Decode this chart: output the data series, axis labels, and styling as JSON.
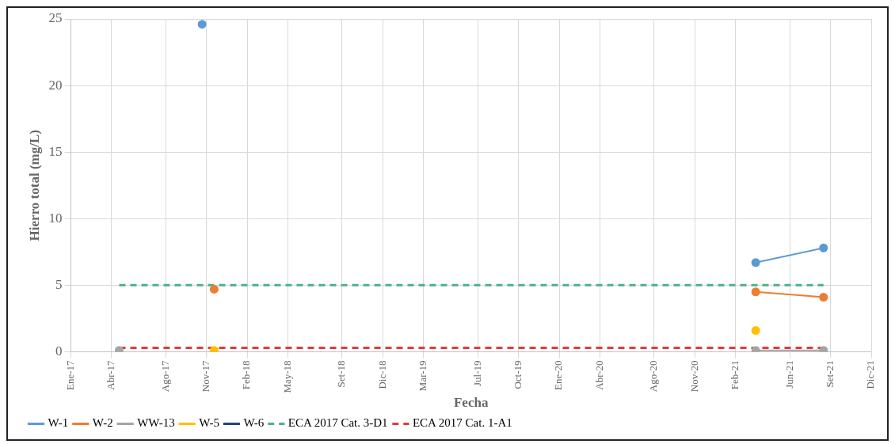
{
  "chart_data": {
    "type": "line",
    "xlabel": "Fecha",
    "ylabel": "Hierro total (mg/L)",
    "xlim": [
      "2017-01-01",
      "2021-12-01"
    ],
    "xticks": [
      {
        "value": "2017-01-01",
        "label": "Ene-17"
      },
      {
        "value": "2017-04-01",
        "label": "Abr-17"
      },
      {
        "value": "2017-08-01",
        "label": "Ago-17"
      },
      {
        "value": "2017-11-01",
        "label": "Nov-17"
      },
      {
        "value": "2018-02-01",
        "label": "Feb-18"
      },
      {
        "value": "2018-05-01",
        "label": "May-18"
      },
      {
        "value": "2018-09-01",
        "label": "Set-18"
      },
      {
        "value": "2018-12-01",
        "label": "Dic-18"
      },
      {
        "value": "2019-03-01",
        "label": "Mar-19"
      },
      {
        "value": "2019-07-01",
        "label": "Jul-19"
      },
      {
        "value": "2019-10-01",
        "label": "Oct-19"
      },
      {
        "value": "2020-01-01",
        "label": "Ene-20"
      },
      {
        "value": "2020-04-01",
        "label": "Abr-20"
      },
      {
        "value": "2020-08-01",
        "label": "Ago-20"
      },
      {
        "value": "2020-11-01",
        "label": "Nov-20"
      },
      {
        "value": "2021-02-01",
        "label": "Feb-21"
      },
      {
        "value": "2021-06-01",
        "label": "Jun-21"
      },
      {
        "value": "2021-09-01",
        "label": "Set-21"
      },
      {
        "value": "2021-12-01",
        "label": "Dic-21"
      }
    ],
    "ylim": [
      0,
      25
    ],
    "yticks": [
      0,
      5,
      10,
      15,
      20,
      25
    ],
    "grid": true,
    "legend": "bottom",
    "marker": "circle",
    "line_style": "solid",
    "series": [
      {
        "name": "W-1",
        "color": "#5b9bd5",
        "x": [
          "2017-10-22",
          "2019-06-01",
          "2021-03-16",
          "2021-08-16"
        ],
        "values": [
          24.6,
          null,
          6.7,
          7.8
        ]
      },
      {
        "name": "W-2",
        "color": "#ed7d31",
        "x": [
          "2017-11-18",
          "2019-06-01",
          "2021-03-16",
          "2021-08-16"
        ],
        "values": [
          4.7,
          null,
          4.5,
          4.1
        ]
      },
      {
        "name": "WW-13",
        "color": "#a5a5a5",
        "x": [
          "2017-04-18",
          "2019-06-01",
          "2021-03-16",
          "2021-08-16"
        ],
        "values": [
          0.1,
          null,
          0.1,
          0.1
        ]
      },
      {
        "name": "W-5",
        "type": "scatter",
        "color": "#ffc000",
        "x": [
          "2017-11-18",
          "2021-03-16"
        ],
        "values": [
          0.1,
          1.6
        ]
      },
      {
        "name": "W-6",
        "color": "#264478"
      },
      {
        "name": "ECA 2017 Cat. 3-D1",
        "color": "#4fb08a",
        "marker": "none",
        "line_style": "dashed",
        "x": [
          "2017-04-18",
          "2021-08-16"
        ],
        "values": [
          5,
          5
        ]
      },
      {
        "name": "ECA 2017 Cat. 1-A1",
        "color": "#e03c3c",
        "marker": "none",
        "line_style": "dashed",
        "x": [
          "2017-04-18",
          "2021-08-16"
        ],
        "values": [
          0.3,
          0.3
        ]
      }
    ]
  }
}
